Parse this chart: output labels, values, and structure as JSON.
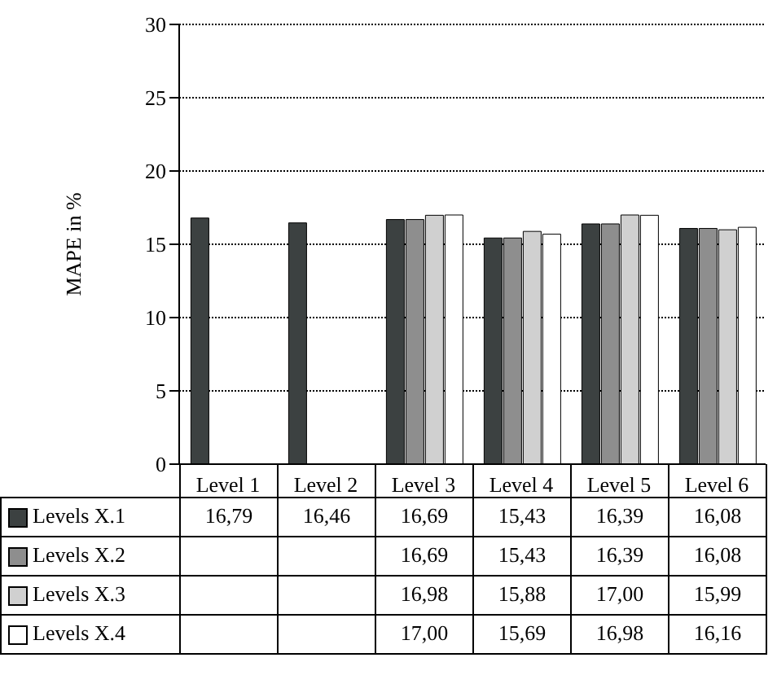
{
  "chart_data": {
    "type": "bar",
    "ylabel": "MAPE  in %",
    "categories": [
      "Level 1",
      "Level 2",
      "Level 3",
      "Level 4",
      "Level 5",
      "Level 6"
    ],
    "series": [
      {
        "name": "Levels X.1",
        "color": "#3c4141",
        "values": [
          16.79,
          16.46,
          16.69,
          15.43,
          16.39,
          16.08
        ],
        "value_labels": [
          "16,79",
          "16,46",
          "16,69",
          "15,43",
          "16,39",
          "16,08"
        ]
      },
      {
        "name": "Levels X.2",
        "color": "#8e8e8e",
        "values": [
          null,
          null,
          16.69,
          15.43,
          16.39,
          16.08
        ],
        "value_labels": [
          null,
          null,
          "16,69",
          "15,43",
          "16,39",
          "16,08"
        ]
      },
      {
        "name": "Levels X.3",
        "color": "#d0d0d0",
        "values": [
          null,
          null,
          16.98,
          15.88,
          17.0,
          15.99
        ],
        "value_labels": [
          null,
          null,
          "16,98",
          "15,88",
          "17,00",
          "15,99"
        ]
      },
      {
        "name": "Levels X.4",
        "color": "#ffffff",
        "values": [
          null,
          null,
          17.0,
          15.69,
          16.98,
          16.16
        ],
        "value_labels": [
          null,
          null,
          "17,00",
          "15,69",
          "16,98",
          "16,16"
        ]
      }
    ],
    "ylim": [
      0,
      30
    ],
    "yticks": [
      0,
      5,
      10,
      15,
      20,
      25,
      30
    ],
    "grid": "y",
    "legend": "bottom"
  }
}
